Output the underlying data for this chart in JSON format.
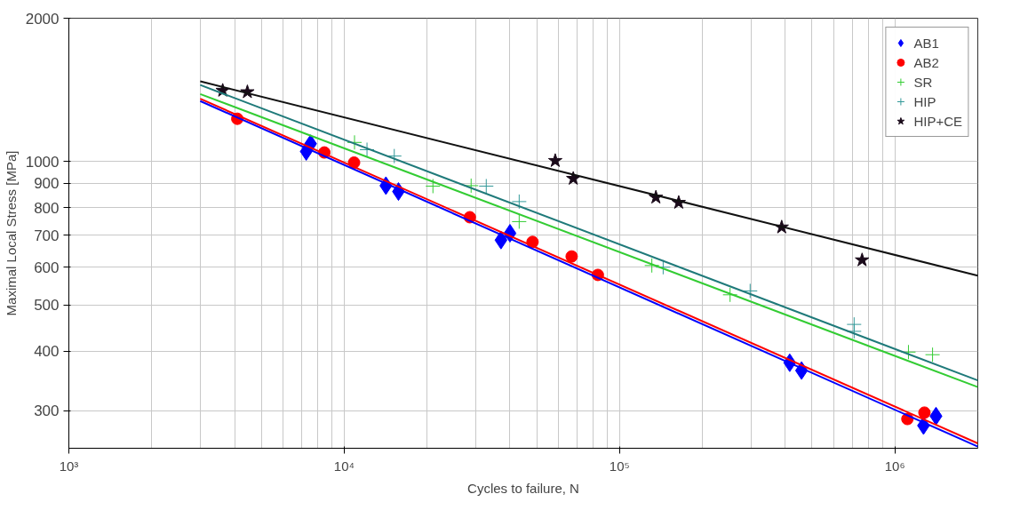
{
  "chart_data": {
    "type": "scatter",
    "xlabel": "Cycles to failure, N",
    "ylabel": "Maximal Local Stress [MPa]",
    "log": "xy",
    "grid": true,
    "legend": "top right",
    "xlim": [
      1000,
      2000000
    ],
    "xticks": [
      {
        "value": 1000,
        "label": "10³"
      },
      {
        "value": 10000,
        "label": "10⁴"
      },
      {
        "value": 100000,
        "label": "10⁵"
      },
      {
        "value": 1000000,
        "label": "10⁶"
      }
    ],
    "ylim": [
      250,
      2000
    ],
    "yticks": [
      300,
      400,
      500,
      600,
      700,
      800,
      900,
      1000,
      2000
    ],
    "series": [
      {
        "name": "AB1",
        "color": "#0000ff",
        "marker": "diamond",
        "x": [
          7280,
          7550,
          14170,
          15740,
          37100,
          40000,
          415000,
          458000,
          1270000,
          1410000
        ],
        "values": [
          1050,
          1090,
          890,
          865,
          684,
          707,
          378,
          364,
          279,
          292
        ]
      },
      {
        "name": "AB2",
        "color": "#ff0000",
        "marker": "circle",
        "x": [
          4090,
          8470,
          10860,
          28600,
          48300,
          67000,
          83400,
          1110000,
          1280000
        ],
        "values": [
          1230,
          1045,
          995,
          764,
          678,
          632,
          578,
          288,
          297
        ]
      },
      {
        "name": "SR",
        "color": "#33cc33",
        "marker": "cross",
        "x": [
          10900,
          21000,
          28900,
          43200,
          131000,
          252000,
          1120000,
          1370000
        ],
        "values": [
          1097,
          888,
          890,
          748,
          605,
          525,
          398,
          393
        ]
      },
      {
        "name": "HIP",
        "color": "#339999",
        "marker": "cross",
        "x": [
          12100,
          15200,
          32800,
          43200,
          144000,
          298000,
          711000,
          711000
        ],
        "values": [
          1059,
          1027,
          888,
          824,
          600,
          535,
          455,
          440
        ]
      },
      {
        "name": "HIP+CE",
        "color": "#1a0a1a",
        "marker": "star",
        "x": [
          3620,
          4450,
          58400,
          67900,
          135500,
          164000,
          388000,
          760000
        ],
        "values": [
          1410,
          1400,
          1004,
          921,
          841,
          820,
          728,
          621
        ]
      },
      {
        "type": "line",
        "color": "#0000ff",
        "x": [
          3000,
          2000000
        ],
        "values": [
          1340,
          252
        ]
      },
      {
        "type": "line",
        "color": "#ff0000",
        "x": [
          3000,
          2000000
        ],
        "values": [
          1355,
          256
        ]
      },
      {
        "type": "line",
        "color": "#33cc33",
        "x": [
          3000,
          2000000
        ],
        "values": [
          1386,
          336
        ]
      },
      {
        "type": "line",
        "color": "#1f7a7a",
        "x": [
          3000,
          2000000
        ],
        "values": [
          1448,
          347
        ]
      },
      {
        "type": "line",
        "color": "#111111",
        "x": [
          3000,
          2000000
        ],
        "values": [
          1474,
          576
        ]
      }
    ]
  }
}
